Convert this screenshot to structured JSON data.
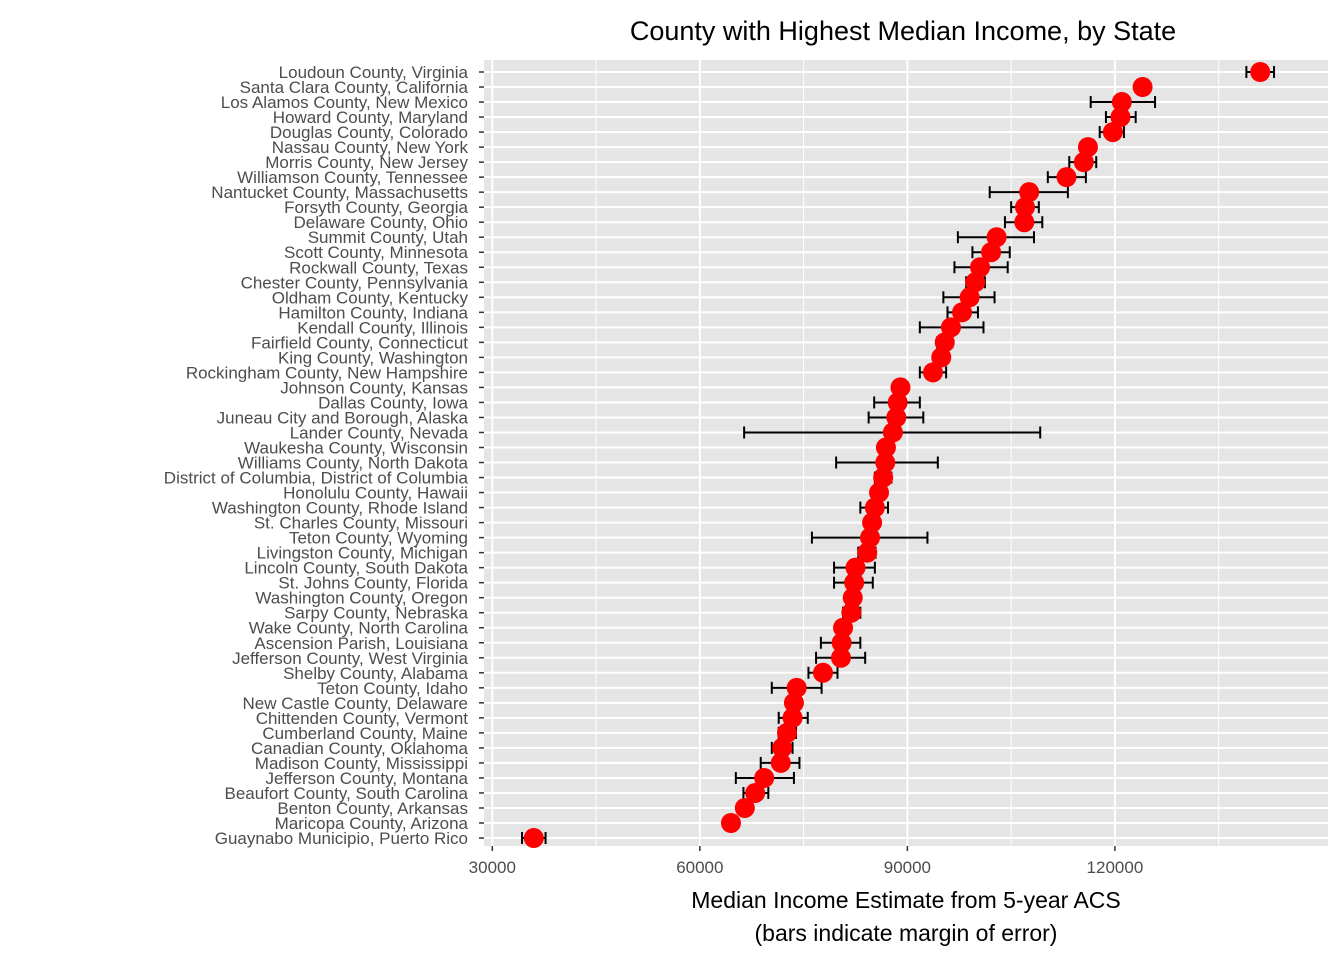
{
  "chart_data": {
    "type": "scatter",
    "title": "County with Highest Median Income, by State",
    "xlabel": "Median Income Estimate from 5-year ACS",
    "xlabel_sub": "(bars indicate margin of error)",
    "ylabel": "",
    "xlim": [
      28800,
      150800
    ],
    "x_ticks": [
      30000,
      60000,
      90000,
      120000
    ],
    "x_tick_labels": [
      "30000",
      "60000",
      "90000",
      "120000"
    ],
    "grid": true,
    "point_color": "#ff0000",
    "errorbar_color": "#000000",
    "panel_color": "#e5e5e5",
    "grid_color": "#ffffff",
    "series": [
      {
        "points": [
          {
            "label": "Loudoun County, Virginia",
            "x": 141000,
            "low": 139000,
            "high": 143000
          },
          {
            "label": "Santa Clara County, California",
            "x": 124000,
            "low": 123000,
            "high": 125000
          },
          {
            "label": "Los Alamos County, New Mexico",
            "x": 121000,
            "low": 116500,
            "high": 125800
          },
          {
            "label": "Howard County, Maryland",
            "x": 120800,
            "low": 118700,
            "high": 123000
          },
          {
            "label": "Douglas County, Colorado",
            "x": 119700,
            "low": 117800,
            "high": 121300
          },
          {
            "label": "Nassau County, New York",
            "x": 116100,
            "low": 115100,
            "high": 117100
          },
          {
            "label": "Morris County, New Jersey",
            "x": 115500,
            "low": 113400,
            "high": 117300
          },
          {
            "label": "Williamson County, Tennessee",
            "x": 113000,
            "low": 110300,
            "high": 115800
          },
          {
            "label": "Nantucket County, Massachusetts",
            "x": 107600,
            "low": 101900,
            "high": 113200
          },
          {
            "label": "Forsyth County, Georgia",
            "x": 107000,
            "low": 105000,
            "high": 109000
          },
          {
            "label": "Delaware County, Ohio",
            "x": 106900,
            "low": 104100,
            "high": 109500
          },
          {
            "label": "Summit County, Utah",
            "x": 102900,
            "low": 97300,
            "high": 108300
          },
          {
            "label": "Scott County, Minnesota",
            "x": 102100,
            "low": 99400,
            "high": 104800
          },
          {
            "label": "Rockwall County, Texas",
            "x": 100500,
            "low": 96800,
            "high": 104500
          },
          {
            "label": "Chester County, Pennsylvania",
            "x": 99800,
            "low": 98500,
            "high": 101200
          },
          {
            "label": "Oldham County, Kentucky",
            "x": 99000,
            "low": 95200,
            "high": 102600
          },
          {
            "label": "Hamilton County, Indiana",
            "x": 97900,
            "low": 95800,
            "high": 100200
          },
          {
            "label": "Kendall County, Illinois",
            "x": 96300,
            "low": 91800,
            "high": 101000
          },
          {
            "label": "Fairfield County, Connecticut",
            "x": 95400,
            "low": 94300,
            "high": 96500
          },
          {
            "label": "King County, Washington",
            "x": 94900,
            "low": 94200,
            "high": 95600
          },
          {
            "label": "Rockingham County, New Hampshire",
            "x": 93700,
            "low": 91800,
            "high": 95600
          },
          {
            "label": "Johnson County, Kansas",
            "x": 89000,
            "low": 88300,
            "high": 89800
          },
          {
            "label": "Dallas County, Iowa",
            "x": 88600,
            "low": 85200,
            "high": 91800
          },
          {
            "label": "Juneau City and Borough, Alaska",
            "x": 88400,
            "low": 84400,
            "high": 92300
          },
          {
            "label": "Lander County, Nevada",
            "x": 87900,
            "low": 66400,
            "high": 109200
          },
          {
            "label": "Waukesha County, Wisconsin",
            "x": 86900,
            "low": 86200,
            "high": 87600
          },
          {
            "label": "Williams County, North Dakota",
            "x": 86800,
            "low": 79700,
            "high": 94400
          },
          {
            "label": "District of Columbia, District of Columbia",
            "x": 86500,
            "low": 85300,
            "high": 87700
          },
          {
            "label": "Honolulu County, Hawaii",
            "x": 85900,
            "low": 85300,
            "high": 86500
          },
          {
            "label": "Washington County, Rhode Island",
            "x": 85300,
            "low": 83200,
            "high": 87200
          },
          {
            "label": "St. Charles County, Missouri",
            "x": 84900,
            "low": 84100,
            "high": 85700
          },
          {
            "label": "Teton County, Wyoming",
            "x": 84600,
            "low": 76200,
            "high": 92900
          },
          {
            "label": "Livingston County, Michigan",
            "x": 84200,
            "low": 82900,
            "high": 85400
          },
          {
            "label": "Lincoln County, South Dakota",
            "x": 82500,
            "low": 79400,
            "high": 85300
          },
          {
            "label": "St. Johns County, Florida",
            "x": 82300,
            "low": 79400,
            "high": 85000
          },
          {
            "label": "Washington County, Oregon",
            "x": 82100,
            "low": 81300,
            "high": 82900
          },
          {
            "label": "Sarpy County, Nebraska",
            "x": 81900,
            "low": 80700,
            "high": 83200
          },
          {
            "label": "Wake County, North Carolina",
            "x": 80700,
            "low": 80100,
            "high": 81300
          },
          {
            "label": "Ascension Parish, Louisiana",
            "x": 80500,
            "low": 77500,
            "high": 83200
          },
          {
            "label": "Jefferson County, West Virginia",
            "x": 80400,
            "low": 76800,
            "high": 83900
          },
          {
            "label": "Shelby County, Alabama",
            "x": 77800,
            "low": 75700,
            "high": 79900
          },
          {
            "label": "Teton County, Idaho",
            "x": 74000,
            "low": 70400,
            "high": 77600
          },
          {
            "label": "New Castle County, Delaware",
            "x": 73600,
            "low": 72800,
            "high": 74400
          },
          {
            "label": "Chittenden County, Vermont",
            "x": 73400,
            "low": 71400,
            "high": 75600
          },
          {
            "label": "Cumberland County, Maine",
            "x": 72600,
            "low": 71400,
            "high": 73900
          },
          {
            "label": "Canadian County, Oklahoma",
            "x": 71900,
            "low": 70400,
            "high": 73400
          },
          {
            "label": "Madison County, Mississippi",
            "x": 71700,
            "low": 68800,
            "high": 74400
          },
          {
            "label": "Jefferson County, Montana",
            "x": 69300,
            "low": 65200,
            "high": 73600
          },
          {
            "label": "Beaufort County, South Carolina",
            "x": 68000,
            "low": 66300,
            "high": 69900
          },
          {
            "label": "Benton County, Arkansas",
            "x": 66500,
            "low": 65600,
            "high": 67300
          },
          {
            "label": "Maricopa County, Arizona",
            "x": 64500,
            "low": 64100,
            "high": 64900
          },
          {
            "label": "Guaynabo Municipio, Puerto Rico",
            "x": 36000,
            "low": 34300,
            "high": 37700
          }
        ]
      }
    ]
  }
}
